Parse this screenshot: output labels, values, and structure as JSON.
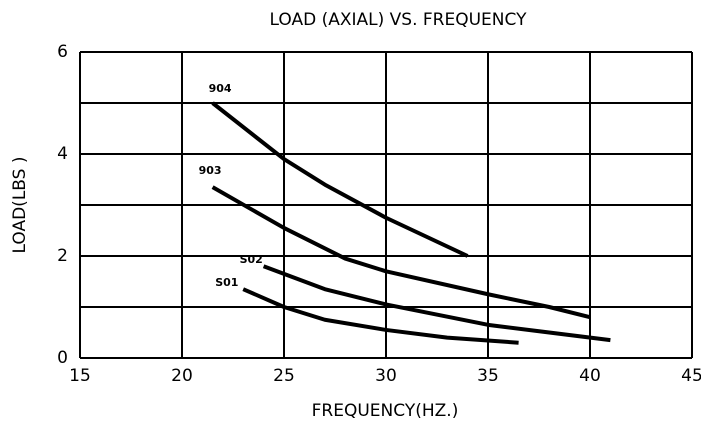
{
  "chart_data": {
    "type": "line",
    "title": "LOAD (AXIAL) VS. FREQUENCY",
    "x_label": "FREQUENCY(HZ.)",
    "y_label": "LOAD(LBS )",
    "xlim": [
      15,
      45
    ],
    "xticks": [
      15,
      20,
      25,
      30,
      35,
      40,
      45
    ],
    "ylim": [
      0,
      6
    ],
    "yticks": [
      0,
      2,
      4,
      6
    ],
    "ygrid": [
      0,
      1,
      2,
      3,
      4,
      5,
      6
    ],
    "grid": true,
    "series": [
      {
        "name": "904",
        "color": "#000000",
        "x": [
          21.5,
          25,
          27,
          30,
          34
        ],
        "values": [
          5.0,
          3.9,
          3.4,
          2.75,
          2.0
        ]
      },
      {
        "name": "903",
        "color": "#000000",
        "x": [
          21.5,
          25,
          28,
          30,
          35,
          38,
          40
        ],
        "values": [
          3.35,
          2.55,
          1.95,
          1.7,
          1.25,
          1.0,
          0.8
        ]
      },
      {
        "name": "S02",
        "color": "#000000",
        "x": [
          24,
          27,
          30,
          35,
          38,
          41
        ],
        "values": [
          1.8,
          1.35,
          1.05,
          0.65,
          0.5,
          0.35
        ]
      },
      {
        "name": "S01",
        "color": "#000000",
        "x": [
          23,
          25,
          27,
          30,
          33,
          36.5
        ],
        "values": [
          1.35,
          1.0,
          0.75,
          0.55,
          0.4,
          0.3
        ]
      }
    ]
  }
}
